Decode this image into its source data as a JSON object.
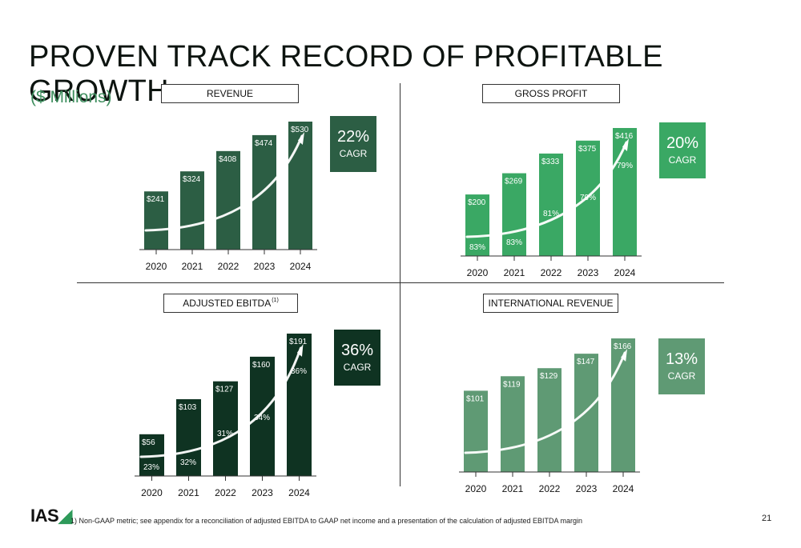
{
  "title": "PROVEN TRACK RECORD OF PROFITABLE GROWTH",
  "subtitle": "($ Millions)",
  "charts": {
    "revenue": {
      "label": "REVENUE",
      "cagr_pct": "22%",
      "cagr_label": "CAGR"
    },
    "gross_profit": {
      "label": "GROSS PROFIT",
      "cagr_pct": "20%",
      "cagr_label": "CAGR"
    },
    "adjusted_ebitda": {
      "label": "ADJUSTED EBITDA",
      "label_sup": "(1)",
      "cagr_pct": "36%",
      "cagr_label": "CAGR"
    },
    "international_revenue": {
      "label": "INTERNATIONAL REVENUE",
      "cagr_pct": "13%",
      "cagr_label": "CAGR"
    }
  },
  "colors": {
    "revenue": "#2c5e44",
    "gross_profit": "#3aa864",
    "adjusted_ebitda": "#0f3322",
    "international_revenue": "#5f9a74",
    "subtitle": "#3f8f5f"
  },
  "chart_data": [
    {
      "type": "bar",
      "title": "REVENUE",
      "categories": [
        "2020",
        "2021",
        "2022",
        "2023",
        "2024"
      ],
      "values": [
        241,
        324,
        408,
        474,
        530
      ],
      "value_labels": [
        "$241",
        "$324",
        "$408",
        "$474",
        "$530"
      ]
    },
    {
      "type": "bar",
      "title": "GROSS PROFIT",
      "categories": [
        "2020",
        "2021",
        "2022",
        "2023",
        "2024"
      ],
      "values": [
        200,
        269,
        333,
        375,
        416
      ],
      "value_labels": [
        "$200",
        "$269",
        "$333",
        "$375",
        "$416"
      ],
      "margin_labels": [
        "83%",
        "83%",
        "81%",
        "79%",
        "79%"
      ]
    },
    {
      "type": "bar",
      "title": "ADJUSTED EBITDA",
      "categories": [
        "2020",
        "2021",
        "2022",
        "2023",
        "2024"
      ],
      "values": [
        56,
        103,
        127,
        160,
        191
      ],
      "value_labels": [
        "$56",
        "$103",
        "$127",
        "$160",
        "$191"
      ],
      "margin_labels": [
        "23%",
        "32%",
        "31%",
        "34%",
        "36%"
      ]
    },
    {
      "type": "bar",
      "title": "INTERNATIONAL REVENUE",
      "categories": [
        "2020",
        "2021",
        "2022",
        "2023",
        "2024"
      ],
      "values": [
        101,
        119,
        129,
        147,
        166
      ],
      "value_labels": [
        "$101",
        "$119",
        "$129",
        "$147",
        "$166"
      ]
    }
  ],
  "footer": {
    "logo": "IAS",
    "footnote": "1) Non-GAAP metric; see appendix for a reconciliation of adjusted EBITDA to GAAP net income and a presentation of the calculation of adjusted EBITDA margin",
    "page_number": "21"
  }
}
